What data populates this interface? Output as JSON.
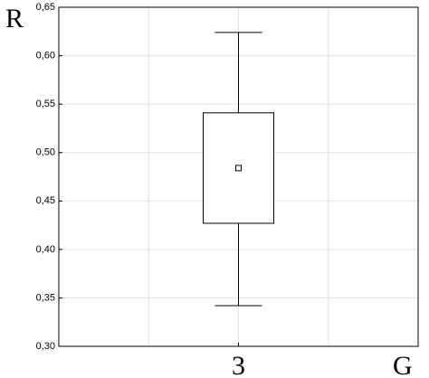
{
  "chart_data": {
    "type": "box",
    "y_label": "R",
    "x_label": "G",
    "categories": [
      "3"
    ],
    "boxes": [
      {
        "whisker_low": 0.342,
        "box_low": 0.427,
        "mean": 0.484,
        "box_high": 0.541,
        "whisker_high": 0.624
      }
    ],
    "ylim": [
      0.3,
      0.65
    ],
    "yticks": [
      {
        "value": 0.3,
        "label": "0,30"
      },
      {
        "value": 0.35,
        "label": "0,35"
      },
      {
        "value": 0.4,
        "label": "0,40"
      },
      {
        "value": 0.45,
        "label": "0,45"
      },
      {
        "value": 0.5,
        "label": "0,50"
      },
      {
        "value": 0.55,
        "label": "0,55"
      },
      {
        "value": 0.6,
        "label": "0,60"
      },
      {
        "value": 0.65,
        "label": "0,65"
      }
    ],
    "grid": true
  }
}
